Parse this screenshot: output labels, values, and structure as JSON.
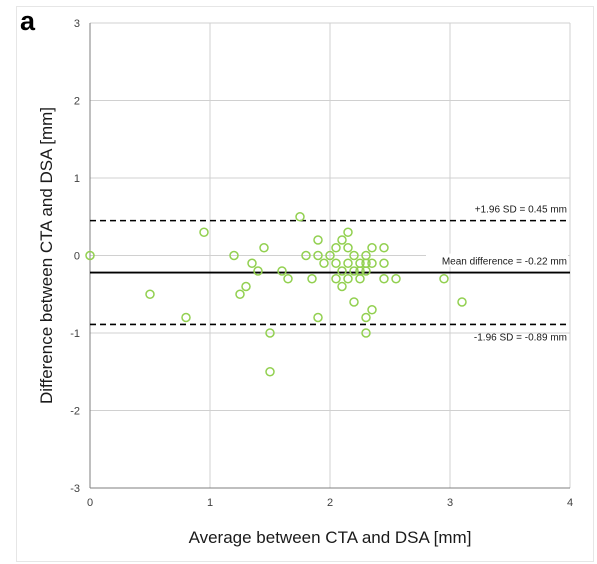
{
  "panel_label": "a",
  "chart_data": {
    "type": "scatter",
    "title": "",
    "xlabel": "Average between CTA and DSA  [mm]",
    "ylabel": "Difference between CTA and DSA  [mm]",
    "xlim": [
      0,
      4
    ],
    "ylim": [
      -3,
      3
    ],
    "x_ticks": [
      "0",
      "1",
      "2",
      "3",
      "4"
    ],
    "y_ticks": [
      "-3",
      "-2",
      "-1",
      "0",
      "1",
      "2",
      "3"
    ],
    "grid": true,
    "marker": "open-circle",
    "marker_color": "#92d050",
    "points": [
      [
        0.0,
        0.0
      ],
      [
        0.5,
        -0.5
      ],
      [
        0.8,
        -0.8
      ],
      [
        0.95,
        0.3
      ],
      [
        1.2,
        0.0
      ],
      [
        1.25,
        -0.5
      ],
      [
        1.3,
        -0.4
      ],
      [
        1.35,
        -0.1
      ],
      [
        1.4,
        -0.2
      ],
      [
        1.45,
        0.1
      ],
      [
        1.5,
        -1.0
      ],
      [
        1.5,
        -1.5
      ],
      [
        1.6,
        -0.2
      ],
      [
        1.65,
        -0.3
      ],
      [
        1.75,
        0.5
      ],
      [
        1.8,
        0.0
      ],
      [
        1.85,
        -0.3
      ],
      [
        1.9,
        0.2
      ],
      [
        1.9,
        0.0
      ],
      [
        1.9,
        -0.8
      ],
      [
        1.95,
        -0.1
      ],
      [
        2.0,
        0.0
      ],
      [
        2.05,
        -0.1
      ],
      [
        2.05,
        0.1
      ],
      [
        2.05,
        -0.3
      ],
      [
        2.1,
        0.2
      ],
      [
        2.1,
        -0.2
      ],
      [
        2.1,
        -0.4
      ],
      [
        2.15,
        0.3
      ],
      [
        2.15,
        0.1
      ],
      [
        2.15,
        -0.1
      ],
      [
        2.15,
        -0.3
      ],
      [
        2.2,
        0.0
      ],
      [
        2.2,
        -0.2
      ],
      [
        2.2,
        -0.6
      ],
      [
        2.25,
        -0.1
      ],
      [
        2.25,
        -0.2
      ],
      [
        2.25,
        -0.3
      ],
      [
        2.3,
        0.0
      ],
      [
        2.3,
        -0.1
      ],
      [
        2.3,
        -0.2
      ],
      [
        2.3,
        -0.8
      ],
      [
        2.3,
        -1.0
      ],
      [
        2.35,
        0.1
      ],
      [
        2.35,
        -0.1
      ],
      [
        2.35,
        -0.7
      ],
      [
        2.45,
        0.1
      ],
      [
        2.45,
        -0.1
      ],
      [
        2.45,
        -0.3
      ],
      [
        2.55,
        -0.3
      ],
      [
        2.95,
        -0.3
      ],
      [
        3.1,
        -0.6
      ]
    ],
    "reference_lines": [
      {
        "name": "upper_limit",
        "y": 0.45,
        "style": "dashed",
        "label": "+1.96 SD = 0.45 mm"
      },
      {
        "name": "mean",
        "y": -0.22,
        "style": "solid",
        "label": "Mean difference = -0.22 mm"
      },
      {
        "name": "lower_limit",
        "y": -0.89,
        "style": "dashed",
        "label": "-1.96 SD = -0.89 mm"
      }
    ]
  }
}
